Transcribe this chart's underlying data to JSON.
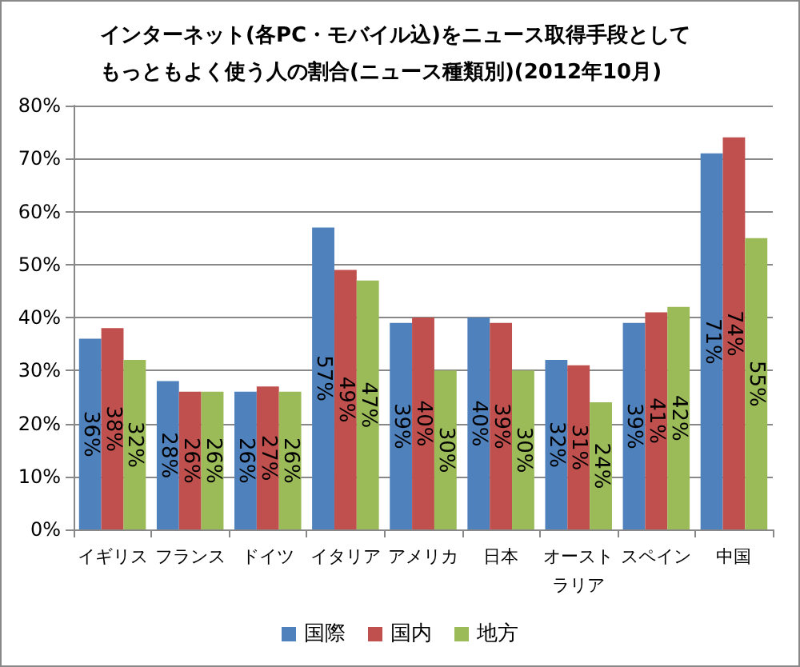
{
  "chart_data": {
    "type": "bar",
    "title": "インターネット(各PC・モバイル込)をニュース取得手段としてもっともよく使う人の割合(ニュース種類別)(2012年10月)",
    "categories": [
      "イギリス",
      "フランス",
      "ドイツ",
      "イタリア",
      "アメリカ",
      "日本",
      "オーストラリア",
      "スペイン",
      "中国"
    ],
    "series": [
      {
        "name": "国際",
        "color": "#4f81bd",
        "values": [
          36,
          28,
          26,
          57,
          39,
          40,
          32,
          39,
          71
        ],
        "value_labels": [
          "36%",
          "28%",
          "26%",
          "57%",
          "39%",
          "40%",
          "32%",
          "39%",
          "71%"
        ]
      },
      {
        "name": "国内",
        "color": "#c0504d",
        "values": [
          38,
          26,
          27,
          49,
          40,
          39,
          31,
          41,
          74
        ],
        "value_labels": [
          "38%",
          "26%",
          "27%",
          "49%",
          "40%",
          "39%",
          "31%",
          "41%",
          "74%"
        ]
      },
      {
        "name": "地方",
        "color": "#9bbb59",
        "values": [
          32,
          26,
          26,
          47,
          30,
          30,
          24,
          42,
          55
        ],
        "value_labels": [
          "32%",
          "26%",
          "26%",
          "47%",
          "30%",
          "30%",
          "24%",
          "42%",
          "55%"
        ]
      }
    ],
    "ylim": [
      0,
      80
    ],
    "yticks": [
      {
        "value": 0,
        "label": "0%"
      },
      {
        "value": 10,
        "label": "10%"
      },
      {
        "value": 20,
        "label": "20%"
      },
      {
        "value": 30,
        "label": "30%"
      },
      {
        "value": 40,
        "label": "40%"
      },
      {
        "value": 50,
        "label": "50%"
      },
      {
        "value": 60,
        "label": "60%"
      },
      {
        "value": 70,
        "label": "70%"
      },
      {
        "value": 80,
        "label": "80%"
      }
    ],
    "grid": "y",
    "legend": "bottom"
  }
}
